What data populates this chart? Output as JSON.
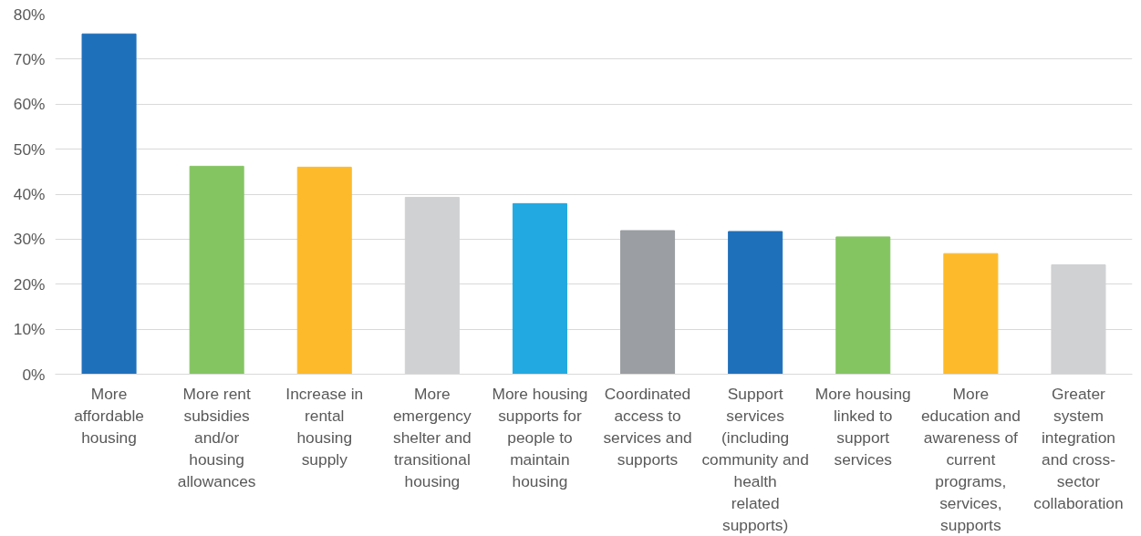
{
  "chart_data": {
    "type": "bar",
    "categories": [
      "More affordable housing",
      "More rent subsidies and/or housing allowances",
      "Increase in rental housing supply",
      "More emergency shelter and transitional housing",
      "More housing supports for people to maintain housing",
      "Coordinated access to services and supports",
      "Support services (including community and health related supports)",
      "More housing linked to support services",
      "More education and awareness of current programs, services, supports",
      "Greater system integration and cross-sector collaboration"
    ],
    "values": [
      75.6,
      46.2,
      46.0,
      39.3,
      37.9,
      31.9,
      31.7,
      30.5,
      26.8,
      24.3
    ],
    "colors": [
      "#1f70bb",
      "#84c562",
      "#fdbb2b",
      "#d0d1d3",
      "#22a9e1",
      "#9b9ea2",
      "#1f70bb",
      "#84c562",
      "#fdbb2b",
      "#d0d1d3"
    ],
    "ylim": [
      0,
      80
    ],
    "yticks": [
      {
        "value": 0,
        "label": "0%"
      },
      {
        "value": 10,
        "label": "10%"
      },
      {
        "value": 20,
        "label": "20%"
      },
      {
        "value": 30,
        "label": "30%"
      },
      {
        "value": 40,
        "label": "40%"
      },
      {
        "value": 50,
        "label": "50%"
      },
      {
        "value": 60,
        "label": "60%"
      },
      {
        "value": 70,
        "label": "70%"
      },
      {
        "value": 80,
        "label": "80%"
      }
    ],
    "grid": "y"
  }
}
